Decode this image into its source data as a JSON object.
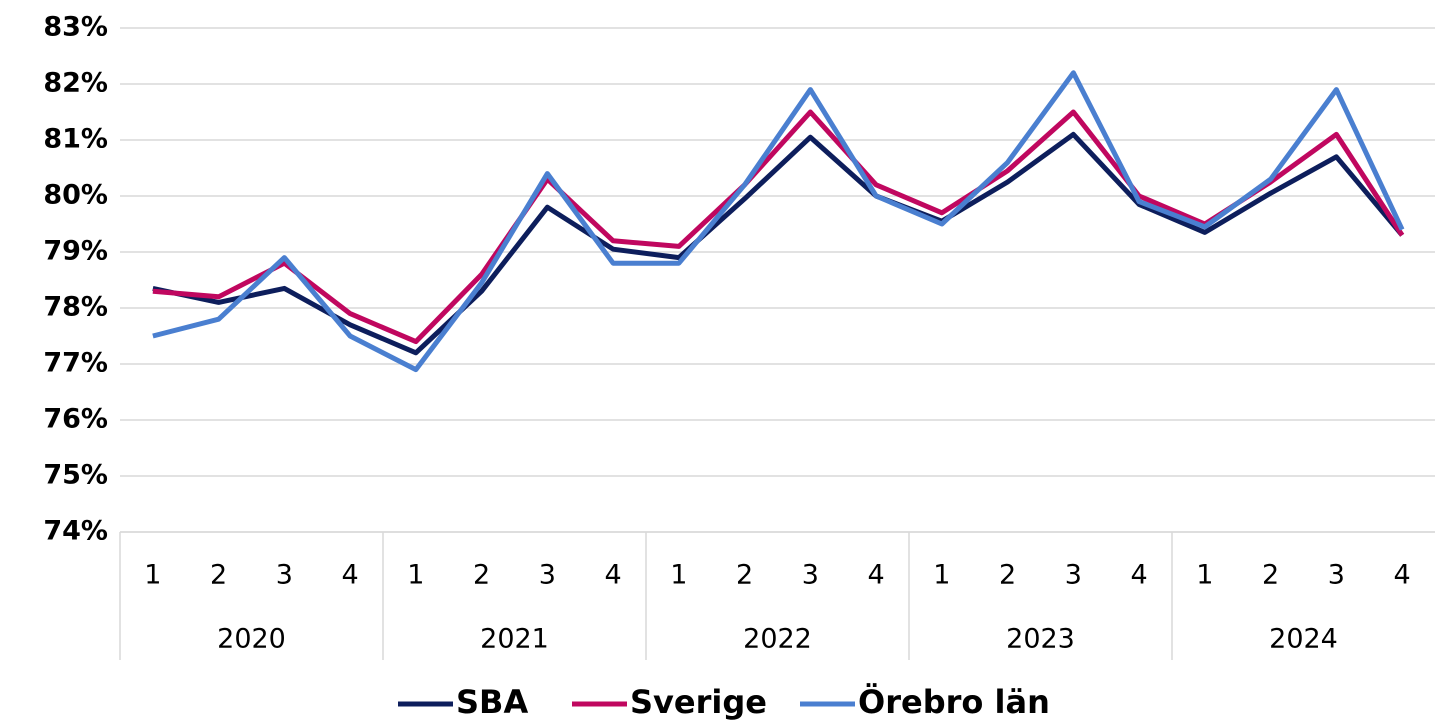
{
  "chart_data": {
    "type": "line",
    "categories": [
      "1",
      "2",
      "3",
      "4",
      "1",
      "2",
      "3",
      "4",
      "1",
      "2",
      "3",
      "4",
      "1",
      "2",
      "3",
      "4",
      "1",
      "2",
      "3",
      "4"
    ],
    "groups": [
      "2020",
      "2021",
      "2022",
      "2023",
      "2024"
    ],
    "series": [
      {
        "name": "SBA",
        "color": "#0d1e5c",
        "values": [
          78.35,
          78.1,
          78.35,
          77.7,
          77.2,
          78.3,
          79.8,
          79.05,
          78.9,
          79.95,
          81.05,
          80.0,
          79.55,
          80.25,
          81.1,
          79.85,
          79.35,
          80.05,
          80.7,
          79.3
        ]
      },
      {
        "name": "Sverige",
        "color": "#c0075f",
        "values": [
          78.3,
          78.2,
          78.8,
          77.9,
          77.4,
          78.6,
          80.3,
          79.2,
          79.1,
          80.2,
          81.5,
          80.2,
          79.7,
          80.45,
          81.5,
          80.0,
          79.5,
          80.25,
          81.1,
          79.3
        ]
      },
      {
        "name": "Örebro län",
        "color": "#4a7fd0",
        "values": [
          77.5,
          77.8,
          78.9,
          77.5,
          76.9,
          78.45,
          80.4,
          78.8,
          78.8,
          80.2,
          81.9,
          80.0,
          79.5,
          80.6,
          82.2,
          79.9,
          79.45,
          80.3,
          81.9,
          79.4
        ]
      }
    ],
    "ylim": [
      74,
      83
    ],
    "yticks": [
      {
        "value": 74,
        "label": "74%"
      },
      {
        "value": 75,
        "label": "75%"
      },
      {
        "value": 76,
        "label": "76%"
      },
      {
        "value": 77,
        "label": "77%"
      },
      {
        "value": 78,
        "label": "78%"
      },
      {
        "value": 79,
        "label": "79%"
      },
      {
        "value": 80,
        "label": "80%"
      },
      {
        "value": 81,
        "label": "81%"
      },
      {
        "value": 82,
        "label": "82%"
      },
      {
        "value": 83,
        "label": "83%"
      }
    ],
    "grid": true,
    "legend": "bottom"
  }
}
